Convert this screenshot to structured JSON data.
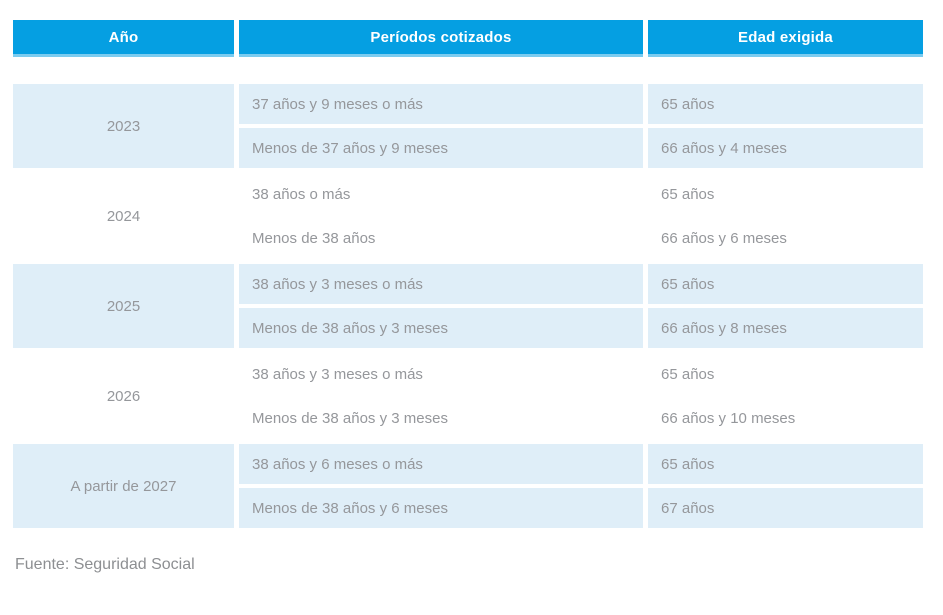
{
  "chart_data": {
    "type": "table",
    "title": "",
    "columns": [
      "Año",
      "Períodos cotizados",
      "Edad exigida"
    ],
    "rows": [
      [
        "2023",
        "37 años y 9 meses o más",
        "65 años"
      ],
      [
        "2023",
        "Menos de 37 años y 9 meses",
        "66 años y 4 meses"
      ],
      [
        "2024",
        "38 años o más",
        "65 años"
      ],
      [
        "2024",
        "Menos de 38 años",
        "66 años y 6 meses"
      ],
      [
        "2025",
        "38 años y 3 meses o más",
        "65 años"
      ],
      [
        "2025",
        "Menos de 38 años y 3 meses",
        "66 años y 8 meses"
      ],
      [
        "2026",
        "38 años y 3 meses o más",
        "65 años"
      ],
      [
        "2026",
        "Menos de 38 años y 3 meses",
        "66 años y 10 meses"
      ],
      [
        "A partir de 2027",
        "38 años y 6 meses o más",
        "65 años"
      ],
      [
        "A partir de 2027",
        "Menos de 38 años y 6 meses",
        "67 años"
      ]
    ],
    "source": "Fuente: Seguridad Social"
  },
  "table": {
    "columns": [
      {
        "label": "Año"
      },
      {
        "label": "Períodos cotizados"
      },
      {
        "label": "Edad exigida"
      }
    ],
    "groups": [
      {
        "year": "2023",
        "rows": [
          {
            "periodo": "37 años y 9 meses o más",
            "edad": "65 años"
          },
          {
            "periodo": "Menos de 37 años y 9 meses",
            "edad": "66 años y 4 meses"
          }
        ]
      },
      {
        "year": "2024",
        "rows": [
          {
            "periodo": "38 años o más",
            "edad": "65 años"
          },
          {
            "periodo": "Menos de 38 años",
            "edad": "66 años y 6 meses"
          }
        ]
      },
      {
        "year": "2025",
        "rows": [
          {
            "periodo": "38 años y 3 meses o más",
            "edad": "65 años"
          },
          {
            "periodo": "Menos de 38 años y 3 meses",
            "edad": "66 años y 8 meses"
          }
        ]
      },
      {
        "year": "2026",
        "rows": [
          {
            "periodo": "38 años y 3 meses o más",
            "edad": "65 años"
          },
          {
            "periodo": "Menos de 38 años y 3 meses",
            "edad": "66 años y 10 meses"
          }
        ]
      },
      {
        "year": "A partir de 2027",
        "rows": [
          {
            "periodo": "38 años y 6 meses o más",
            "edad": "65 años"
          },
          {
            "periodo": "Menos de 38 años y 6 meses",
            "edad": "67 años"
          }
        ]
      }
    ]
  },
  "footer": {
    "source": "Fuente: Seguridad Social"
  },
  "colors": {
    "header_bg": "#059fe2",
    "header_edge": "#7bccf0",
    "header_text": "#ffffff",
    "row_tint": "#dfeef8",
    "body_text": "#95979b",
    "source_text": "#8d8f92"
  }
}
